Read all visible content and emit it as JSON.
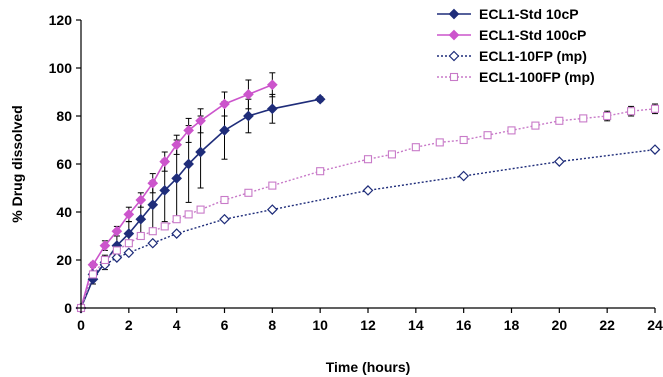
{
  "chart_data": {
    "type": "line",
    "title": "",
    "xlabel": "Time (hours)",
    "ylabel": "% Drug dissolved",
    "xlim": [
      0,
      24
    ],
    "ylim": [
      0,
      120
    ],
    "x_ticks": [
      "0",
      "2",
      "4",
      "6",
      "8",
      "10",
      "12",
      "14",
      "16",
      "18",
      "20",
      "22",
      "24"
    ],
    "y_ticks": [
      "0",
      "20",
      "40",
      "60",
      "80",
      "100",
      "120"
    ],
    "grid": false,
    "legend_position": "top-right",
    "series": [
      {
        "name": "ECL1-Std 10cP",
        "color": "#1f2d7a",
        "line_style": "solid",
        "marker": "filled-diamond",
        "x": [
          0,
          0.5,
          1,
          1.5,
          2,
          2.5,
          3,
          3.5,
          4,
          4.5,
          5,
          6,
          7,
          8,
          10
        ],
        "y": [
          0,
          12,
          19,
          26,
          31,
          37,
          43,
          49,
          54,
          60,
          65,
          74,
          80,
          83,
          87
        ],
        "error": [
          0,
          2,
          3,
          4,
          5,
          8,
          10,
          13,
          16,
          16,
          15,
          12,
          7,
          6,
          1
        ]
      },
      {
        "name": "ECL1-Std 100cP",
        "color": "#cc55cc",
        "line_style": "solid",
        "marker": "filled-diamond",
        "x": [
          0,
          0.5,
          1,
          1.5,
          2,
          2.5,
          3,
          3.5,
          4,
          4.5,
          5,
          6,
          7,
          8
        ],
        "y": [
          0,
          18,
          26,
          32,
          39,
          45,
          52,
          61,
          68,
          74,
          78,
          85,
          89,
          93
        ],
        "error": [
          0,
          1,
          2,
          2,
          3,
          3,
          4,
          4,
          4,
          5,
          5,
          5,
          6,
          5
        ]
      },
      {
        "name": "ECL1-10FP (mp)",
        "color": "#1f2d7a",
        "line_style": "dotted",
        "marker": "open-diamond",
        "x": [
          0,
          0.5,
          1,
          1.5,
          2,
          3,
          4,
          6,
          8,
          12,
          16,
          20,
          24
        ],
        "y": [
          0,
          14,
          18,
          21,
          23,
          27,
          31,
          37,
          41,
          49,
          55,
          61,
          66
        ],
        "error": [
          0,
          0,
          0,
          0,
          0,
          0,
          0,
          0,
          0,
          0,
          0,
          0,
          0
        ]
      },
      {
        "name": "ECL1-100FP (mp)",
        "color": "#c87ac8",
        "line_style": "dotted",
        "marker": "open-square",
        "x": [
          0,
          0.5,
          1,
          1.5,
          2,
          2.5,
          3,
          3.5,
          4,
          4.5,
          5,
          6,
          7,
          8,
          10,
          12,
          13,
          14,
          15,
          16,
          17,
          18,
          19,
          20,
          21,
          22,
          23,
          24
        ],
        "y": [
          0,
          14,
          20,
          24,
          27,
          30,
          32,
          34,
          37,
          39,
          41,
          45,
          48,
          51,
          57,
          62,
          64,
          67,
          69,
          70,
          72,
          74,
          76,
          78,
          79,
          80,
          82,
          83
        ],
        "error": [
          0,
          1,
          1,
          1,
          1,
          1,
          1,
          1,
          1,
          1,
          1,
          1,
          1,
          1,
          1,
          1,
          1,
          1,
          1,
          1,
          1,
          1,
          1,
          1,
          1,
          2,
          2,
          2
        ]
      }
    ]
  }
}
